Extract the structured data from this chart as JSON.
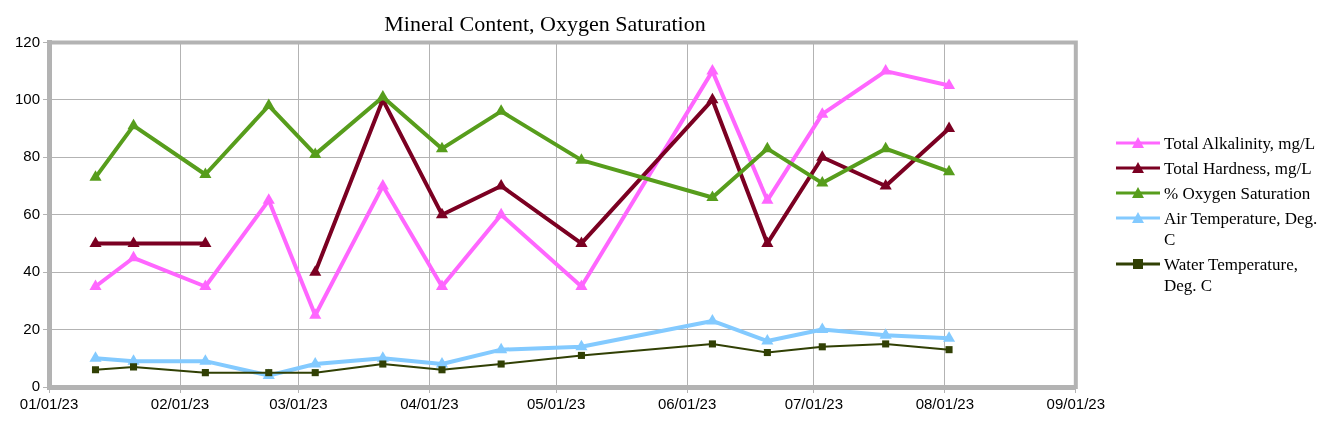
{
  "chart_data": {
    "type": "line",
    "title": "Mineral Content, Oxygen Saturation",
    "x": [
      "2023-01-12",
      "2023-01-21",
      "2023-02-07",
      "2023-02-22",
      "2023-03-05",
      "2023-03-21",
      "2023-04-04",
      "2023-04-18",
      "2023-05-07",
      "2023-06-07",
      "2023-06-20",
      "2023-07-03",
      "2023-07-18",
      "2023-08-02"
    ],
    "series": [
      {
        "name": "Total Alkalinity, mg/L",
        "color": "#ff66ff",
        "marker": "triangle",
        "values": [
          35,
          45,
          35,
          65,
          25,
          70,
          35,
          60,
          35,
          110,
          65,
          95,
          110,
          105
        ]
      },
      {
        "name": "Total Hardness, mg/L",
        "color": "#7b0022",
        "marker": "triangle",
        "values": [
          50,
          50,
          50,
          null,
          40,
          100,
          60,
          70,
          50,
          100,
          50,
          80,
          70,
          90
        ]
      },
      {
        "name": "% Oxygen Saturation",
        "color": "#579d1c",
        "marker": "triangle",
        "values": [
          73,
          91,
          74,
          98,
          81,
          101,
          83,
          96,
          79,
          66,
          83,
          71,
          83,
          75
        ]
      },
      {
        "name": "Air Temperature, Deg. C",
        "color": "#83caff",
        "marker": "triangle",
        "values": [
          10,
          9,
          9,
          4,
          8,
          10,
          8,
          13,
          14,
          23,
          16,
          20,
          18,
          17
        ]
      },
      {
        "name": "Water Temperature, Deg. C",
        "color": "#314004",
        "marker": "square",
        "values": [
          6,
          7,
          5,
          5,
          5,
          8,
          6,
          8,
          11,
          15,
          12,
          14,
          15,
          13
        ]
      }
    ],
    "xlim": [
      "2023-01-01",
      "2023-09-01"
    ],
    "xticks": [
      {
        "value": "2023-01-01",
        "label": "01/01/23"
      },
      {
        "value": "2023-02-01",
        "label": "02/01/23"
      },
      {
        "value": "2023-03-01",
        "label": "03/01/23"
      },
      {
        "value": "2023-04-01",
        "label": "04/01/23"
      },
      {
        "value": "2023-05-01",
        "label": "05/01/23"
      },
      {
        "value": "2023-06-01",
        "label": "06/01/23"
      },
      {
        "value": "2023-07-01",
        "label": "07/01/23"
      },
      {
        "value": "2023-08-01",
        "label": "08/01/23"
      },
      {
        "value": "2023-09-01",
        "label": "09/01/23"
      }
    ],
    "ylim": [
      0,
      120
    ],
    "yticks": [
      0,
      20,
      40,
      60,
      80,
      100,
      120
    ],
    "grid": true,
    "legend": "right",
    "line_style": "solid"
  }
}
